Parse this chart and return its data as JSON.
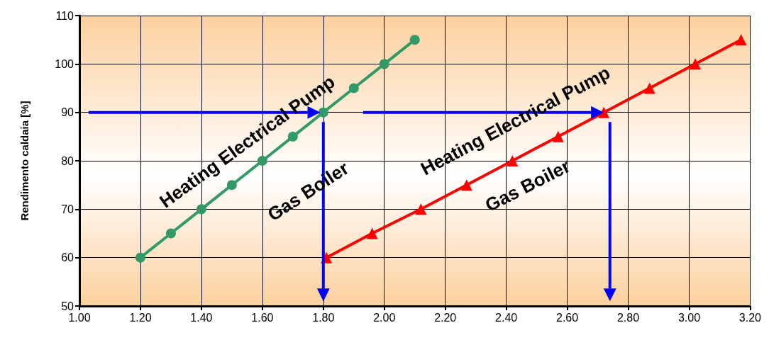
{
  "chart_data": {
    "type": "line",
    "ylabel": "Rendimento caldaia [%]",
    "series": [
      {
        "color": "#339966",
        "marker": "circle",
        "x": [
          1.2,
          1.3,
          1.4,
          1.5,
          1.6,
          1.7,
          1.8,
          1.9,
          2.0,
          2.1
        ],
        "values": [
          60,
          65,
          70,
          75,
          80,
          85,
          90,
          95,
          100,
          105
        ]
      },
      {
        "color": "#ff0000",
        "marker": "triangle",
        "x": [
          1.81,
          1.96,
          2.12,
          2.27,
          2.42,
          2.57,
          2.72,
          2.87,
          3.02,
          3.17
        ],
        "values": [
          60,
          65,
          70,
          75,
          80,
          85,
          90,
          95,
          100,
          105
        ]
      }
    ],
    "xlim": [
      1.0,
      3.2
    ],
    "xticks": [
      {
        "value": 1.0,
        "label": "1.00"
      },
      {
        "value": 1.2,
        "label": "1.20"
      },
      {
        "value": 1.4,
        "label": "1.40"
      },
      {
        "value": 1.6,
        "label": "1.60"
      },
      {
        "value": 1.8,
        "label": "1.80"
      },
      {
        "value": 2.0,
        "label": "2.00"
      },
      {
        "value": 2.2,
        "label": "2.20"
      },
      {
        "value": 2.4,
        "label": "2.40"
      },
      {
        "value": 2.6,
        "label": "2.60"
      },
      {
        "value": 2.8,
        "label": "2.80"
      },
      {
        "value": 3.0,
        "label": "3.00"
      },
      {
        "value": 3.2,
        "label": "3.20"
      }
    ],
    "ylim": [
      50,
      110
    ],
    "yticks": [
      50,
      60,
      70,
      80,
      90,
      100,
      110
    ],
    "grid": true,
    "annotations": [
      "Heating Electrical Pump",
      "Gas Boiler",
      "Heating Electrical Pump",
      "Gas Boiler"
    ]
  }
}
